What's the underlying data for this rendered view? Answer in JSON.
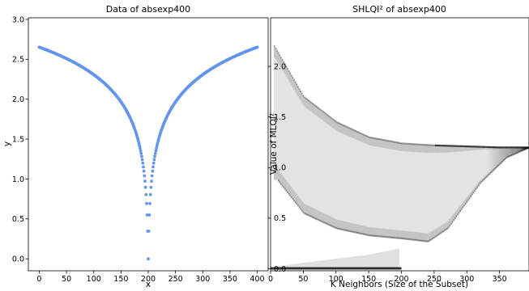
{
  "chart_data": [
    {
      "type": "scatter",
      "title": "Data of absexp400",
      "xlabel": "x",
      "ylabel": "y",
      "xlim": [
        -20,
        420
      ],
      "ylim": [
        -0.15,
        3.02
      ],
      "xticks": [
        0,
        50,
        100,
        150,
        200,
        250,
        300,
        350,
        400
      ],
      "yticks": [
        0.0,
        0.5,
        1.0,
        1.5,
        2.0,
        2.5,
        3.0
      ],
      "ytick_labels": [
        "0.0",
        "0.5",
        "1.0",
        "1.5",
        "2.0",
        "2.5",
        "3.0"
      ],
      "point_color": "#6495ED",
      "series": [
        {
          "x_range": [
            0,
            400
          ],
          "n_points": 401,
          "curve": "y = log(1 + |x - 200|) / 2",
          "sample_points": [
            [
              0,
              2.88
            ],
            [
              50,
              2.72
            ],
            [
              100,
              2.52
            ],
            [
              150,
              2.15
            ],
            [
              180,
              1.66
            ],
            [
              195,
              1.25
            ],
            [
              199,
              1.0
            ],
            [
              200,
              0.0
            ],
            [
              201,
              1.0
            ],
            [
              205,
              1.25
            ],
            [
              220,
              1.66
            ],
            [
              250,
              2.15
            ],
            [
              300,
              2.52
            ],
            [
              350,
              2.72
            ],
            [
              400,
              2.88
            ]
          ]
        }
      ]
    },
    {
      "type": "heatmap",
      "title": "SHLQI² of absexp400",
      "xlabel": "K Neighbors (Size of the Subset)",
      "ylabel": "Value of MLQI²",
      "xlim": [
        0,
        395
      ],
      "ylim": [
        -0.02,
        2.48
      ],
      "xticks": [
        0,
        50,
        100,
        150,
        200,
        250,
        300,
        350
      ],
      "yticks": [
        0.0,
        0.5,
        1.0,
        1.5,
        2.0
      ],
      "ytick_labels": [
        "0.0",
        "0.5",
        "1.0",
        "1.5",
        "2.0"
      ],
      "colormap": "Greys",
      "bands": [
        {
          "name": "",
          "description": "upper envelope",
          "points": [
            [
              5,
              2.2
            ],
            [
              50,
              1.7
            ],
            [
              100,
              1.45
            ],
            [
              150,
              1.3
            ],
            [
              200,
              1.24
            ],
            [
              250,
              1.22
            ],
            [
              300,
              1.21
            ],
            [
              350,
              1.2
            ],
            [
              395,
              1.2
            ]
          ]
        },
        {
          "name": "",
          "description": "lower envelope",
          "points": [
            [
              10,
              0.88
            ],
            [
              50,
              0.55
            ],
            [
              100,
              0.4
            ],
            [
              150,
              0.33
            ],
            [
              200,
              0.3
            ],
            [
              240,
              0.27
            ],
            [
              270,
              0.4
            ],
            [
              320,
              0.85
            ],
            [
              360,
              1.1
            ],
            [
              395,
              1.2
            ]
          ]
        },
        {
          "name": "",
          "description": "small-k cluster",
          "points": [
            [
              5,
              0.02
            ],
            [
              50,
              0.06
            ],
            [
              100,
              0.1
            ],
            [
              150,
              0.14
            ],
            [
              195,
              0.2
            ]
          ]
        }
      ]
    }
  ]
}
